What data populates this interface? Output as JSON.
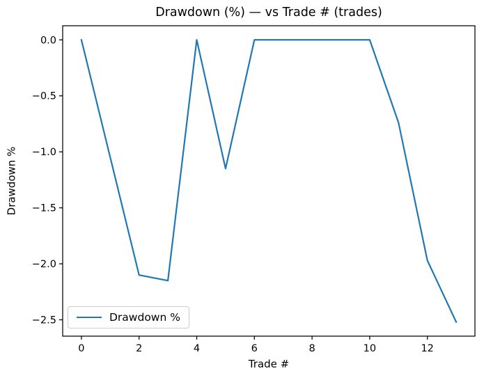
{
  "figure": {
    "background": "#ffffff",
    "text_color": "#000000"
  },
  "chart_data": {
    "type": "line",
    "title": "Drawdown (%) — vs Trade # (trades)",
    "xlabel": "Trade #",
    "ylabel": "Drawdown %",
    "x": [
      0,
      1,
      2,
      3,
      4,
      5,
      6,
      7,
      8,
      9,
      10,
      11,
      12,
      13
    ],
    "series": [
      {
        "name": "Drawdown %",
        "color": "#1f77b4",
        "values": [
          0.0,
          -1.05,
          -2.1,
          -2.15,
          0.0,
          -1.15,
          0.0,
          0.0,
          0.0,
          0.0,
          0.0,
          -0.74,
          -1.97,
          -2.52
        ]
      }
    ],
    "xlim": [
      -0.65,
      13.65
    ],
    "ylim": [
      -2.646,
      0.126
    ],
    "xticks": {
      "values": [
        0,
        2,
        4,
        6,
        8,
        10,
        12
      ],
      "labels": [
        "0",
        "2",
        "4",
        "6",
        "8",
        "10",
        "12"
      ]
    },
    "yticks": {
      "values": [
        0.0,
        -0.5,
        -1.0,
        -1.5,
        -2.0,
        -2.5
      ],
      "labels": [
        "0.0",
        "−0.5",
        "−1.0",
        "−1.5",
        "−2.0",
        "−2.5"
      ]
    },
    "grid": false,
    "legend": {
      "position": "lower left",
      "entries": [
        "Drawdown %"
      ]
    }
  }
}
